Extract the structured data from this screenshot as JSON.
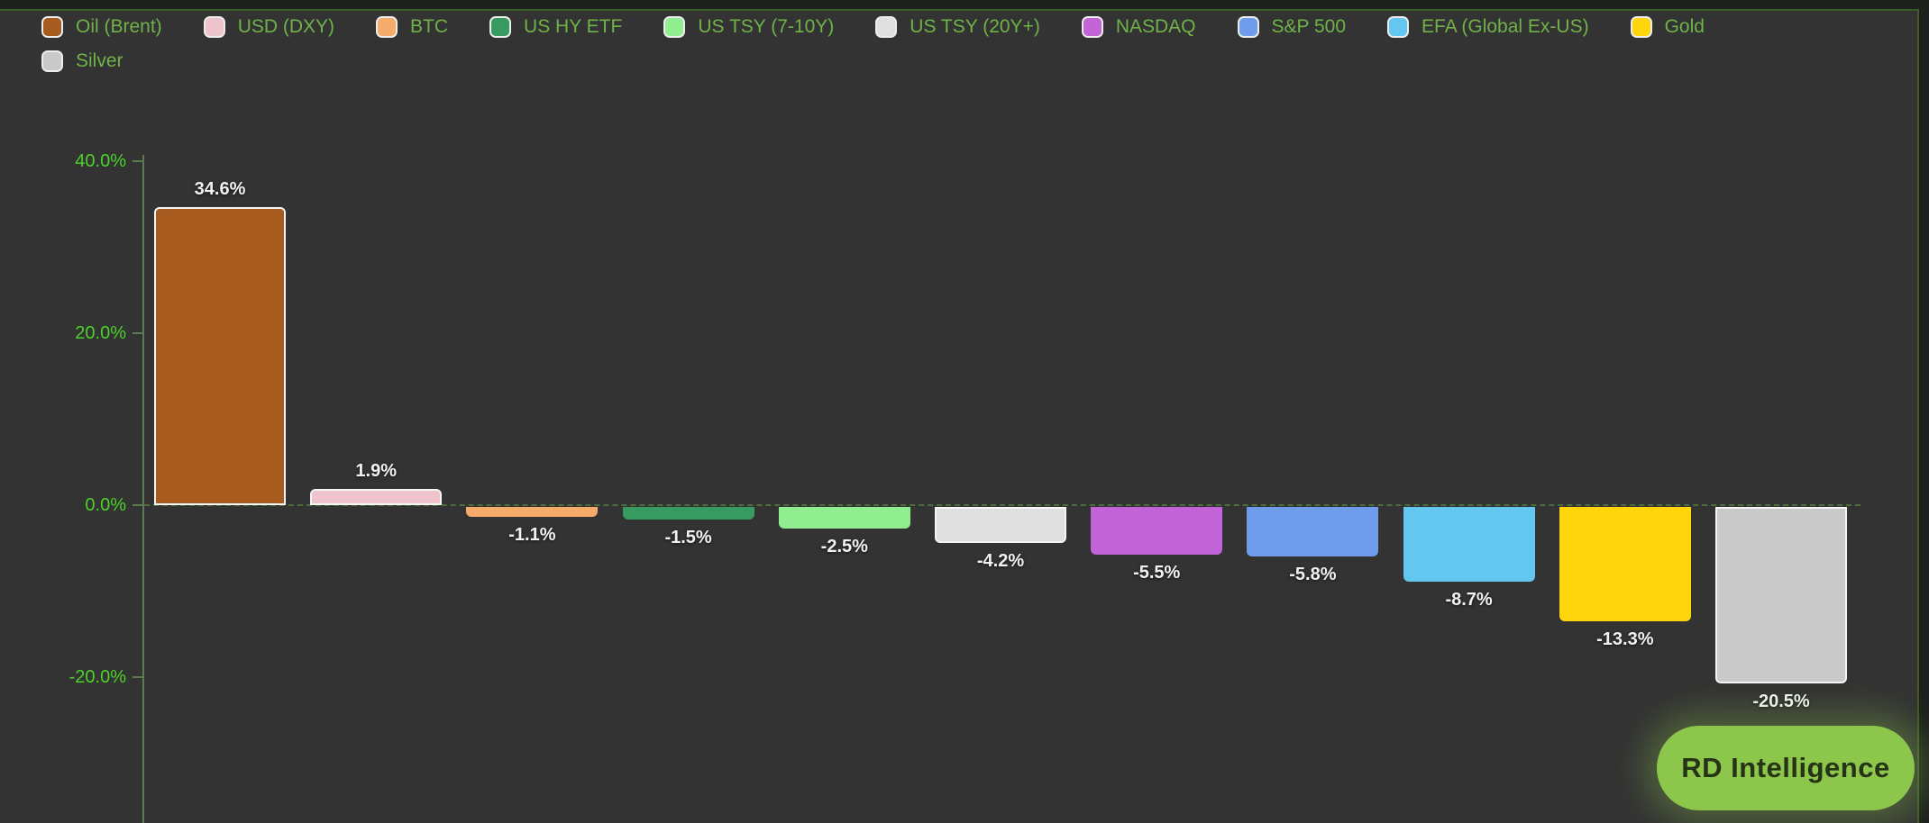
{
  "frame": {
    "panel_bg": "#333333",
    "outer_bg": "#1e201d",
    "border_color": "#3b5b28"
  },
  "legend": {
    "text_color": "#6fb348",
    "swatch_border_color": "#ececec",
    "items": [
      {
        "label": "Oil (Brent)",
        "color": "#a85b1e",
        "row": 1
      },
      {
        "label": "USD (DXY)",
        "color": "#efc3cc",
        "row": 1
      },
      {
        "label": "BTC",
        "color": "#f5ab69",
        "row": 1
      },
      {
        "label": "US HY ETF",
        "color": "#379a60",
        "row": 1
      },
      {
        "label": "US TSY (7-10Y)",
        "color": "#90ee90",
        "row": 1
      },
      {
        "label": "US TSY (20Y+)",
        "color": "#e0e0e0",
        "row": 1
      },
      {
        "label": "NASDAQ",
        "color": "#c263d8",
        "row": 1
      },
      {
        "label": "S&P 500",
        "color": "#6f9ceb",
        "row": 1
      },
      {
        "label": "EFA (Global Ex-US)",
        "color": "#64c7ef",
        "row": 1
      },
      {
        "label": "Gold",
        "color": "#ffd60b",
        "row": 1
      },
      {
        "label": "Silver",
        "color": "#c9c9c9",
        "row": 2
      }
    ]
  },
  "chart_data": {
    "type": "bar",
    "title": "",
    "xlabel": "",
    "ylabel": "",
    "categories": [
      "Oil (Brent)",
      "USD (DXY)",
      "BTC",
      "US HY ETF",
      "US TSY (7-10Y)",
      "US TSY (20Y+)",
      "NASDAQ",
      "S&P 500",
      "EFA (Global Ex-US)",
      "Gold",
      "Silver"
    ],
    "values": [
      34.6,
      1.9,
      -1.1,
      -1.5,
      -2.5,
      -4.2,
      -5.5,
      -5.8,
      -8.7,
      -13.3,
      -20.5
    ],
    "value_labels": [
      "34.6%",
      "1.9%",
      "-1.1%",
      "-1.5%",
      "-2.5%",
      "-4.2%",
      "-5.5%",
      "-5.8%",
      "-8.7%",
      "-13.3%",
      "-20.5%"
    ],
    "bar_colors": [
      "#a85b1e",
      "#efc3cc",
      "#f5ab69",
      "#379a60",
      "#90ee90",
      "#e0e0e0",
      "#c263d8",
      "#6f9ceb",
      "#64c7ef",
      "#ffd60b",
      "#c9c9c9"
    ],
    "white_edge_bars": [
      0,
      1,
      5,
      10
    ],
    "bar_edge_color": "#f5f5f5",
    "y_ticks": [
      {
        "label": "40.0%",
        "value": 40
      },
      {
        "label": "20.0%",
        "value": 20
      },
      {
        "label": "0.0%",
        "value": 0
      },
      {
        "label": "-20.0%",
        "value": -20
      }
    ],
    "ylim": [
      -27,
      42
    ],
    "grid": false,
    "legend_position": "top-left",
    "zero_line_style": "dashed",
    "axis_color": "#5d7b50",
    "zero_line_color": "#4c6e3c",
    "tick_label_color": "#4cd228",
    "bar_label_color": "#f2f2f2"
  },
  "badge": {
    "label": "RD Intelligence",
    "bg": "#8cc64b",
    "text_color": "#263317"
  }
}
